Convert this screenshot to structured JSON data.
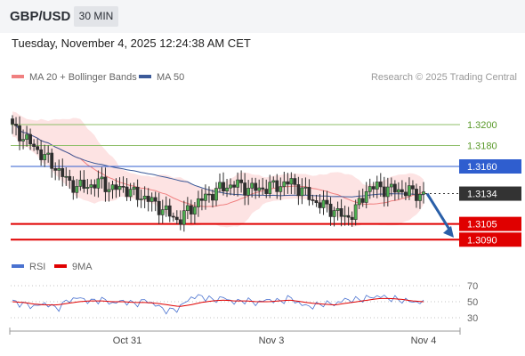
{
  "header": {
    "pair": "GBP/USD",
    "timeframe": "30 MIN"
  },
  "date_line": "Tuesday, November 4, 2025 12:24:38 AM CET",
  "chart_data": [
    {
      "type": "candlestick",
      "legend": [
        {
          "name": "MA 20 + Bollinger Bands",
          "color": "#f08080"
        },
        {
          "name": "MA 50",
          "color": "#3c5a99"
        }
      ],
      "legend_position": "top-left",
      "copyright": "Research © 2025 Trading Central",
      "ylim": [
        1.308,
        1.321
      ],
      "x_ticks": [
        "Oct 31",
        "Nov 3",
        "Nov 4"
      ],
      "resistance_levels": [
        {
          "label": "1.3200",
          "value": 1.32,
          "color": "#8fbf6a"
        },
        {
          "label": "1.3180",
          "value": 1.318,
          "color": "#8fbf6a"
        },
        {
          "label": "1.3160",
          "value": 1.316,
          "color": "#2f5ecf"
        }
      ],
      "support_levels": [
        {
          "label": "1.3105",
          "value": 1.3105,
          "color": "#e00000"
        },
        {
          "label": "1.3090",
          "value": 1.309,
          "color": "#e00000"
        }
      ],
      "current_price": {
        "label": "1.3134",
        "value": 1.3134
      },
      "forecast_arrow": {
        "from": 1.3134,
        "to": 1.3092,
        "color": "#2a5fa8"
      },
      "close_anchors": [
        1.3197,
        1.3188,
        1.3178,
        1.3168,
        1.3158,
        1.3145,
        1.314,
        1.3142,
        1.3145,
        1.3138,
        1.314,
        1.3133,
        1.313,
        1.3123,
        1.3115,
        1.3108,
        1.312,
        1.3128,
        1.3135,
        1.314,
        1.3143,
        1.314,
        1.3138,
        1.314,
        1.3142,
        1.3145,
        1.3138,
        1.3128,
        1.3122,
        1.3118,
        1.311,
        1.312,
        1.314,
        1.314,
        1.3138,
        1.3137,
        1.3135,
        1.3133
      ],
      "grid": false
    },
    {
      "type": "line",
      "title": "",
      "legend": [
        {
          "name": "RSI",
          "color": "#4a72d0"
        },
        {
          "name": "9MA",
          "color": "#e00000"
        }
      ],
      "ylim": [
        25,
        75
      ],
      "y_ticks": [
        "70",
        "50",
        "30"
      ],
      "rsi_anchors": [
        50,
        47,
        44,
        48,
        41,
        52,
        55,
        50,
        53,
        48,
        51,
        47,
        52,
        45,
        38,
        42,
        55,
        57,
        52,
        55,
        49,
        52,
        48,
        53,
        50,
        55,
        46,
        44,
        48,
        47,
        53,
        52,
        55,
        57,
        54,
        52,
        50,
        49
      ],
      "ma9_anchors": [
        50,
        49,
        47,
        46,
        46,
        48,
        50,
        51,
        51,
        50,
        50,
        49,
        49,
        48,
        46,
        44,
        46,
        49,
        51,
        52,
        51,
        51,
        50,
        50,
        51,
        52,
        50,
        48,
        47,
        46,
        48,
        50,
        52,
        54,
        54,
        53,
        51,
        50
      ]
    }
  ]
}
